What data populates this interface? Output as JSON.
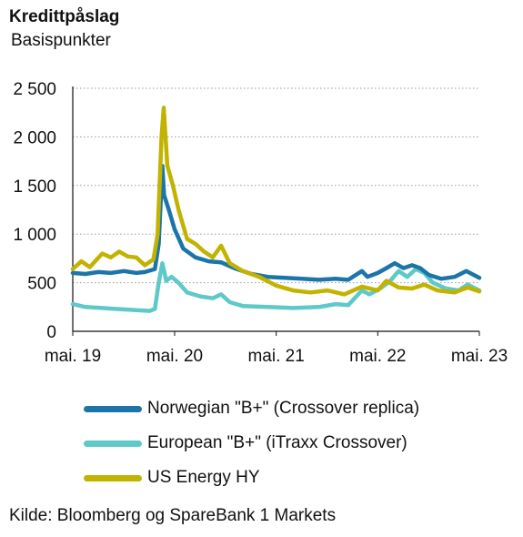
{
  "title": "Kredittpåslag",
  "subtitle": "Basispunkter",
  "source": "Kilde: Bloomberg og SpareBank 1 Markets",
  "chart_data": {
    "type": "line",
    "title": "Kredittpåslag",
    "ylabel": "Basispunkter",
    "ylim": [
      0,
      2500
    ],
    "yticks": [
      0,
      500,
      1000,
      1500,
      2000,
      2500
    ],
    "ytick_labels": [
      "0",
      "500",
      "1 000",
      "1 500",
      "2 000",
      "2 500"
    ],
    "xlim": [
      "2019-05-01",
      "2023-05-01"
    ],
    "xticks": [
      "2019-05-01",
      "2020-05-01",
      "2021-05-01",
      "2022-05-01",
      "2023-05-01"
    ],
    "xtick_labels": [
      "mai. 19",
      "mai. 20",
      "mai. 21",
      "mai. 22",
      "mai. 23"
    ],
    "grid": "horizontal dotted",
    "legend_position": "bottom",
    "series": [
      {
        "name": "Norwegian \"B+\" (Crossover replica)",
        "color": "#1c75a8",
        "points": [
          [
            "2019-05-01",
            600
          ],
          [
            "2019-06-15",
            590
          ],
          [
            "2019-08-01",
            610
          ],
          [
            "2019-09-15",
            600
          ],
          [
            "2019-11-01",
            620
          ],
          [
            "2019-12-15",
            600
          ],
          [
            "2020-01-15",
            610
          ],
          [
            "2020-02-20",
            640
          ],
          [
            "2020-03-05",
            900
          ],
          [
            "2020-03-18",
            1700
          ],
          [
            "2020-03-24",
            1400
          ],
          [
            "2020-04-10",
            1250
          ],
          [
            "2020-05-01",
            1050
          ],
          [
            "2020-06-01",
            850
          ],
          [
            "2020-07-15",
            760
          ],
          [
            "2020-09-01",
            720
          ],
          [
            "2020-10-15",
            710
          ],
          [
            "2020-12-01",
            650
          ],
          [
            "2021-02-01",
            590
          ],
          [
            "2021-04-01",
            560
          ],
          [
            "2021-06-01",
            550
          ],
          [
            "2021-08-01",
            540
          ],
          [
            "2021-10-01",
            530
          ],
          [
            "2021-12-01",
            540
          ],
          [
            "2022-01-15",
            530
          ],
          [
            "2022-03-05",
            620
          ],
          [
            "2022-03-25",
            560
          ],
          [
            "2022-05-01",
            600
          ],
          [
            "2022-06-01",
            650
          ],
          [
            "2022-07-01",
            700
          ],
          [
            "2022-08-01",
            650
          ],
          [
            "2022-09-01",
            680
          ],
          [
            "2022-10-01",
            650
          ],
          [
            "2022-11-01",
            580
          ],
          [
            "2022-12-15",
            540
          ],
          [
            "2023-02-01",
            560
          ],
          [
            "2023-03-15",
            620
          ],
          [
            "2023-05-01",
            550
          ]
        ]
      },
      {
        "name": "European \"B+\" (iTraxx Crossover)",
        "color": "#5fc8c8",
        "points": [
          [
            "2019-05-01",
            280
          ],
          [
            "2019-06-15",
            250
          ],
          [
            "2019-08-15",
            240
          ],
          [
            "2019-10-01",
            230
          ],
          [
            "2019-12-01",
            220
          ],
          [
            "2020-02-01",
            210
          ],
          [
            "2020-02-20",
            230
          ],
          [
            "2020-03-05",
            500
          ],
          [
            "2020-03-18",
            700
          ],
          [
            "2020-04-01",
            520
          ],
          [
            "2020-04-20",
            560
          ],
          [
            "2020-05-15",
            500
          ],
          [
            "2020-06-15",
            400
          ],
          [
            "2020-08-01",
            360
          ],
          [
            "2020-09-15",
            340
          ],
          [
            "2020-10-15",
            380
          ],
          [
            "2020-11-15",
            300
          ],
          [
            "2021-01-01",
            260
          ],
          [
            "2021-04-01",
            250
          ],
          [
            "2021-07-01",
            240
          ],
          [
            "2021-10-01",
            250
          ],
          [
            "2021-12-01",
            280
          ],
          [
            "2022-01-15",
            270
          ],
          [
            "2022-03-05",
            420
          ],
          [
            "2022-04-01",
            380
          ],
          [
            "2022-05-15",
            450
          ],
          [
            "2022-06-15",
            520
          ],
          [
            "2022-07-15",
            620
          ],
          [
            "2022-08-15",
            560
          ],
          [
            "2022-09-15",
            640
          ],
          [
            "2022-10-15",
            600
          ],
          [
            "2022-11-15",
            500
          ],
          [
            "2023-01-01",
            440
          ],
          [
            "2023-02-15",
            420
          ],
          [
            "2023-03-20",
            480
          ],
          [
            "2023-05-01",
            420
          ]
        ]
      },
      {
        "name": "US Energy HY",
        "color": "#c2b300",
        "points": [
          [
            "2019-05-01",
            640
          ],
          [
            "2019-06-01",
            720
          ],
          [
            "2019-07-01",
            660
          ],
          [
            "2019-08-15",
            800
          ],
          [
            "2019-09-15",
            760
          ],
          [
            "2019-10-15",
            820
          ],
          [
            "2019-11-15",
            770
          ],
          [
            "2019-12-15",
            760
          ],
          [
            "2020-01-15",
            680
          ],
          [
            "2020-02-15",
            740
          ],
          [
            "2020-03-01",
            1000
          ],
          [
            "2020-03-15",
            2000
          ],
          [
            "2020-03-23",
            2300
          ],
          [
            "2020-04-05",
            1700
          ],
          [
            "2020-04-25",
            1500
          ],
          [
            "2020-05-15",
            1250
          ],
          [
            "2020-06-15",
            950
          ],
          [
            "2020-07-15",
            900
          ],
          [
            "2020-08-15",
            820
          ],
          [
            "2020-09-15",
            760
          ],
          [
            "2020-10-15",
            880
          ],
          [
            "2020-11-15",
            700
          ],
          [
            "2021-01-01",
            620
          ],
          [
            "2021-03-01",
            560
          ],
          [
            "2021-05-01",
            470
          ],
          [
            "2021-07-01",
            420
          ],
          [
            "2021-09-01",
            400
          ],
          [
            "2021-11-01",
            420
          ],
          [
            "2022-01-01",
            380
          ],
          [
            "2022-03-05",
            460
          ],
          [
            "2022-05-01",
            420
          ],
          [
            "2022-06-01",
            520
          ],
          [
            "2022-07-15",
            450
          ],
          [
            "2022-09-01",
            440
          ],
          [
            "2022-10-15",
            480
          ],
          [
            "2022-12-01",
            420
          ],
          [
            "2023-02-01",
            400
          ],
          [
            "2023-03-20",
            450
          ],
          [
            "2023-05-01",
            410
          ]
        ]
      }
    ]
  }
}
